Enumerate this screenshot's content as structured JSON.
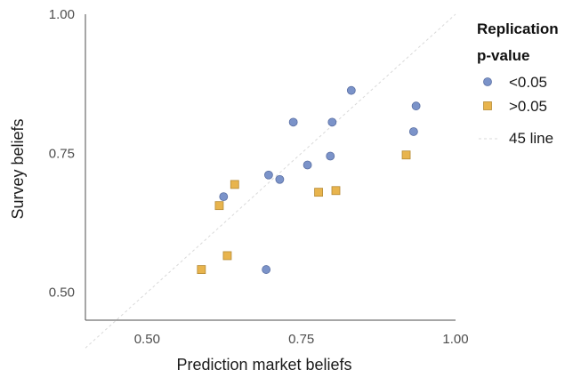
{
  "chart_data": {
    "type": "scatter",
    "xlabel": "Prediction market beliefs",
    "ylabel": "Survey beliefs",
    "xlim": [
      0.4,
      1.0
    ],
    "ylim": [
      0.45,
      1.0
    ],
    "x_ticks": [
      0.5,
      0.75,
      1.0
    ],
    "y_ticks": [
      0.5,
      0.75,
      1.0
    ],
    "x_tick_labels": [
      "0.50",
      "0.75",
      "1.00"
    ],
    "y_tick_labels": [
      "0.50",
      "0.75",
      "1.00"
    ],
    "grid": false,
    "legend": {
      "title": [
        "Replication",
        "p-value"
      ],
      "placement": "right",
      "entries": [
        "<0.05",
        ">0.05",
        "45 line"
      ]
    },
    "reference_line": {
      "name": "45 line",
      "from": [
        0.4,
        0.4
      ],
      "to": [
        1.0,
        1.0
      ],
      "color": "#d9d9d9"
    },
    "series": [
      {
        "name": "<0.05",
        "marker": "circle",
        "color": "#7b93c9",
        "stroke": "#5a6fa3",
        "points": [
          [
            0.624,
            0.672
          ],
          [
            0.697,
            0.711
          ],
          [
            0.715,
            0.703
          ],
          [
            0.737,
            0.806
          ],
          [
            0.76,
            0.729
          ],
          [
            0.797,
            0.745
          ],
          [
            0.8,
            0.806
          ],
          [
            0.831,
            0.863
          ],
          [
            0.932,
            0.789
          ],
          [
            0.936,
            0.835
          ],
          [
            0.693,
            0.541
          ]
        ]
      },
      {
        "name": ">0.05",
        "marker": "square",
        "color": "#e8b44d",
        "stroke": "#b58a34",
        "points": [
          [
            0.588,
            0.541
          ],
          [
            0.63,
            0.566
          ],
          [
            0.617,
            0.656
          ],
          [
            0.642,
            0.694
          ],
          [
            0.778,
            0.68
          ],
          [
            0.806,
            0.683
          ],
          [
            0.92,
            0.747
          ]
        ]
      }
    ]
  }
}
